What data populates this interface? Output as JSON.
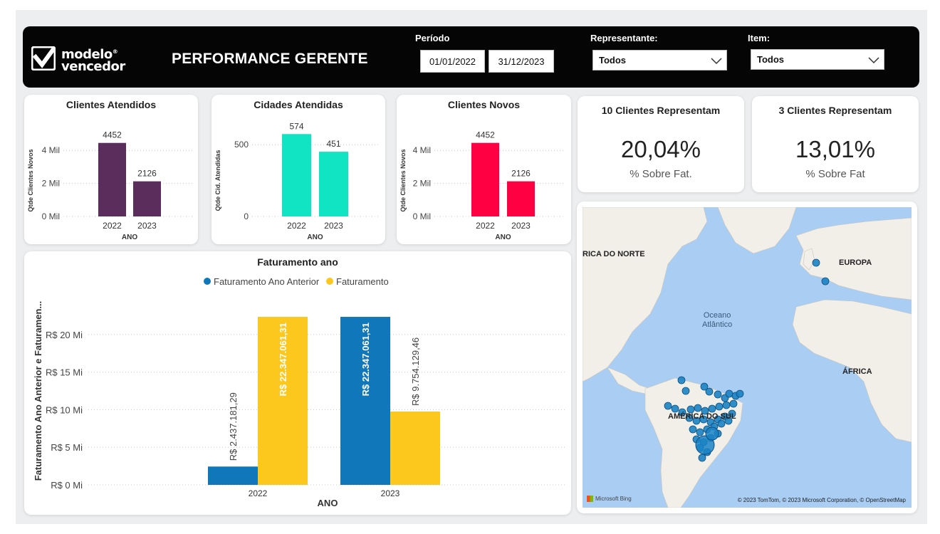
{
  "header": {
    "logo_text_line1": "modelo",
    "logo_reg": "®",
    "logo_text_line2": "vencedor",
    "title": "PERFORMANCE GERENTE",
    "periodo_label": "Período",
    "date_start": "01/01/2022",
    "date_end": "31/12/2023",
    "representante_label": "Representante:",
    "representante_value": "Todos",
    "item_label": "Item:",
    "item_value": "Todos"
  },
  "colors": {
    "clientes_atendidos": "#5b2d5c",
    "cidades_atendidas": "#11e4c2",
    "clientes_novos": "#ff0043",
    "faturamento_anterior": "#1177bb",
    "faturamento": "#fdc81d"
  },
  "cards": {
    "clientes_atendidos": {
      "title": "Clientes Atendidos"
    },
    "cidades_atendidas": {
      "title": "Cidades Atendidas"
    },
    "clientes_novos": {
      "title": "Clientes Novos"
    },
    "faturamento": {
      "title": "Faturamento ano"
    }
  },
  "kpis": {
    "kpi1": {
      "title": "10 Clientes Representam",
      "value": "20,04%",
      "sub": "% Sobre Fat."
    },
    "kpi2": {
      "title": "3 Clientes Representam",
      "value": "13,01%",
      "sub": "% Sobre Fat"
    }
  },
  "chart_data": [
    {
      "type": "bar",
      "title": "Clientes Atendidos",
      "categories": [
        "2022",
        "2023"
      ],
      "values": [
        4452,
        2126
      ],
      "data_labels": [
        "4452",
        "2126"
      ],
      "xlabel": "ANO",
      "ylabel": "Qtde Clientes Novos",
      "ylim": [
        0,
        5000
      ],
      "yticks": [
        0,
        2000,
        4000
      ],
      "ytick_labels": [
        "0 Mil",
        "2 Mil",
        "4 Mil"
      ],
      "grid": true
    },
    {
      "type": "bar",
      "title": "Cidades Atendidas",
      "categories": [
        "2022",
        "2023"
      ],
      "values": [
        574,
        451
      ],
      "data_labels": [
        "574",
        "451"
      ],
      "xlabel": "ANO",
      "ylabel": "Qtde Cid. Atendidas",
      "ylim": [
        0,
        650
      ],
      "yticks": [
        0,
        500
      ],
      "ytick_labels": [
        "0",
        "500"
      ],
      "grid": true
    },
    {
      "type": "bar",
      "title": "Clientes Novos",
      "categories": [
        "2022",
        "2023"
      ],
      "values": [
        4452,
        2126
      ],
      "data_labels": [
        "4452",
        "2126"
      ],
      "xlabel": "ANO",
      "ylabel": "Qtde Clientes Novos",
      "ylim": [
        0,
        5000
      ],
      "yticks": [
        0,
        2000,
        4000
      ],
      "ytick_labels": [
        "0 Mil",
        "2 Mil",
        "4 Mil"
      ],
      "grid": true
    },
    {
      "type": "bar",
      "title": "Faturamento ano",
      "categories": [
        "2022",
        "2023"
      ],
      "series": [
        {
          "name": "Faturamento Ano Anterior",
          "values": [
            2437181.29,
            22347061.31
          ],
          "data_labels": [
            "R$ 2.437.181,29",
            "R$ 22.347.061,31"
          ]
        },
        {
          "name": "Faturamento",
          "values": [
            22347061.31,
            9754129.46
          ],
          "data_labels": [
            "R$ 22.347.061,31",
            "R$ 9.754.129,46"
          ]
        }
      ],
      "xlabel": "ANO",
      "ylabel": "Faturamento Ano Anterior e Faturamen...",
      "ylim": [
        0,
        25000000
      ],
      "yticks": [
        0,
        5000000,
        10000000,
        15000000,
        20000000
      ],
      "ytick_labels": [
        "R$ 0 Mi",
        "R$ 5 Mi",
        "R$ 10 Mi",
        "R$ 15 Mi",
        "R$ 20 Mi"
      ],
      "legend": "top-center",
      "grid": true
    }
  ],
  "map": {
    "labels": {
      "north_america": "RICA DO NORTE",
      "europe": "EUROPA",
      "ocean_line1": "Oceano",
      "ocean_line2": "Atlântico",
      "africa": "ÁFRICA",
      "south_america": "AMÉRICA DO SUL"
    },
    "bing_label": "Microsoft Bing",
    "attribution": "© 2023 TomTom, © 2023 Microsoft Corporation, © OpenStreetMap"
  }
}
